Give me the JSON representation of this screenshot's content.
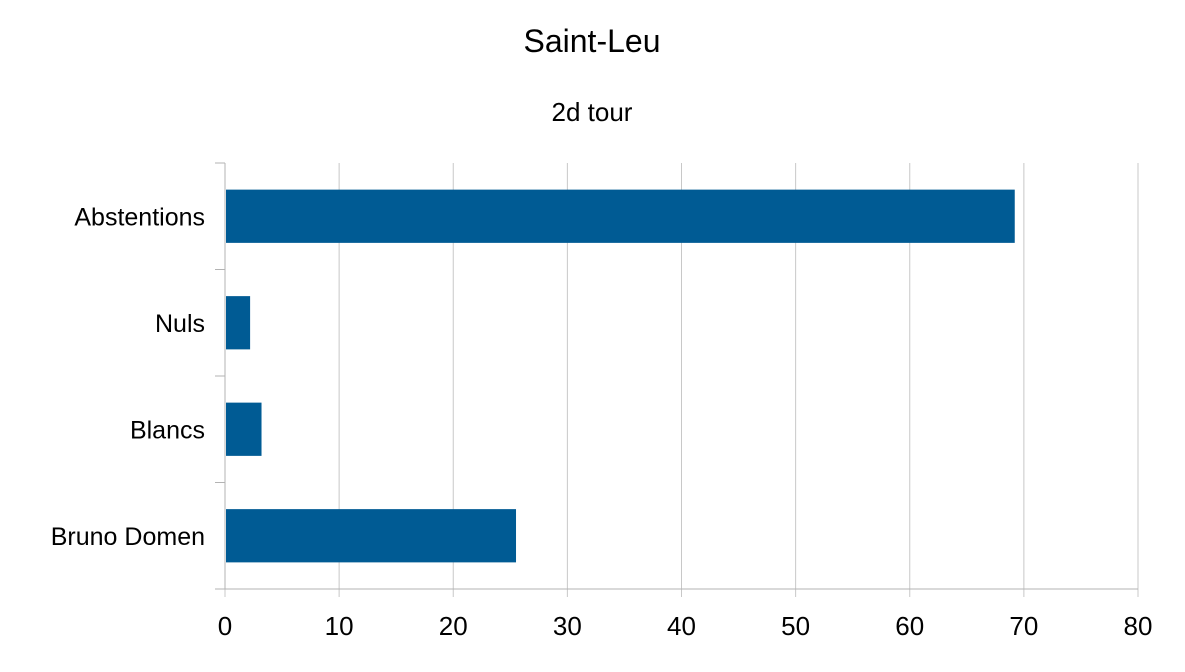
{
  "chart_data": {
    "type": "bar",
    "orientation": "horizontal",
    "title": "Saint-Leu",
    "subtitle": "2d tour",
    "categories": [
      "Abstentions",
      "Nuls",
      "Blancs",
      "Bruno Domen"
    ],
    "values": [
      69.2,
      2.2,
      3.2,
      25.5
    ],
    "xlim": [
      0,
      80
    ],
    "xticks": [
      "0",
      "10",
      "20",
      "30",
      "40",
      "50",
      "60",
      "70",
      "80"
    ],
    "grid": "vertical",
    "legend": "none",
    "bar_color": "#005b94"
  }
}
